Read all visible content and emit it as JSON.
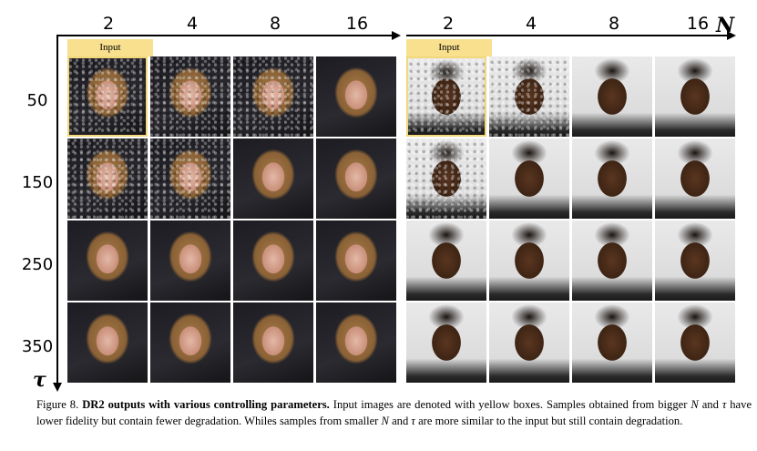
{
  "figure": {
    "columns": [
      "2",
      "4",
      "8",
      "16"
    ],
    "rows": [
      "50",
      "150",
      "250",
      "350"
    ],
    "x_axis_symbol": "N",
    "y_axis_symbol": "τ",
    "input_label": "Input",
    "panels": [
      {
        "subject": "woman-portrait",
        "input_cell": {
          "row": 0,
          "col": 0
        }
      },
      {
        "subject": "man-portrait",
        "input_cell": {
          "row": 0,
          "col": 0
        }
      }
    ],
    "highlight_color": "#f3d77a",
    "input_tag_color": "#f8e08e"
  },
  "caption": {
    "figure_number": "Figure 8.",
    "bold_title": "DR2 outputs with various controlling parameters.",
    "text_1": " Input images are denoted with yellow boxes. Samples obtained from bigger ",
    "var_n": "N",
    "text_2": " and ",
    "var_tau": "τ",
    "text_3": " have lower fidelity but contain fewer degradation. Whiles samples from smaller ",
    "var_n_2": "N",
    "text_4": " and ",
    "var_tau_2": "τ",
    "text_5": " are more similar to the input but still contain degradation."
  }
}
